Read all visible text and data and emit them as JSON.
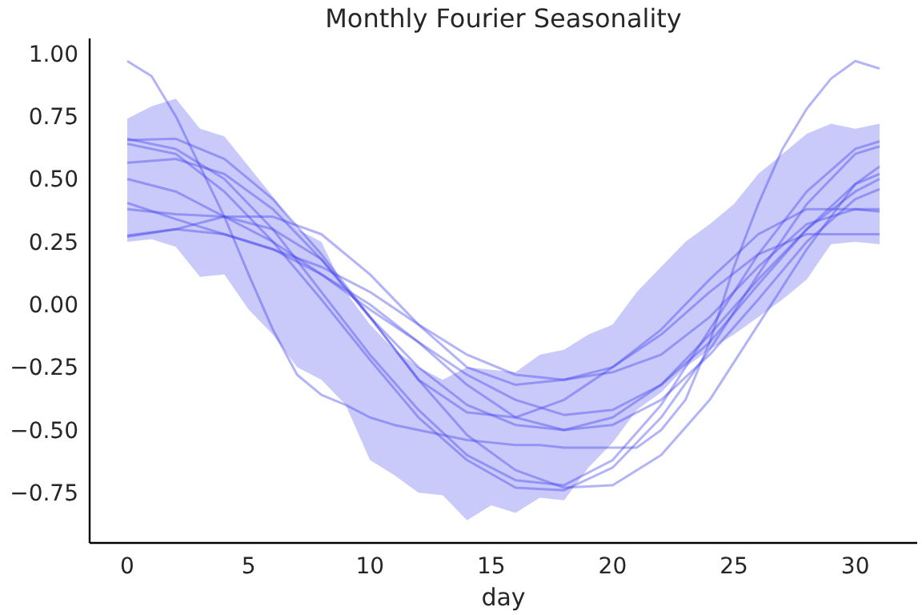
{
  "chart_data": {
    "type": "line",
    "title": "Monthly Fourier Seasonality",
    "xlabel": "day",
    "xlim": [
      -1.55,
      32.55
    ],
    "ylim": [
      -0.95,
      1.06
    ],
    "xticks": [
      0,
      5,
      10,
      15,
      20,
      25,
      30
    ],
    "yticks": [
      {
        "value": -0.75,
        "label": "−0.75"
      },
      {
        "value": -0.5,
        "label": "−0.50"
      },
      {
        "value": -0.25,
        "label": "−0.25"
      },
      {
        "value": 0,
        "label": "0.00"
      },
      {
        "value": 0.25,
        "label": "0.25"
      },
      {
        "value": 0.5,
        "label": "0.50"
      },
      {
        "value": 0.75,
        "label": "0.75"
      },
      {
        "value": 1,
        "label": "1.00"
      }
    ],
    "grid": false,
    "series": [
      {
        "color": "#4040ee",
        "x": [
          0,
          1,
          2,
          3,
          4,
          5,
          6,
          7,
          8,
          9,
          10,
          11,
          12,
          13,
          14,
          15,
          16,
          17,
          18,
          19,
          20,
          21,
          22,
          23,
          24,
          25,
          26,
          27,
          28,
          29,
          30,
          31
        ],
        "values": [
          0.97,
          0.91,
          0.75,
          0.55,
          0.35,
          0.12,
          -0.1,
          -0.28,
          -0.36,
          -0.4,
          -0.45,
          -0.48,
          -0.5,
          -0.52,
          -0.54,
          -0.55,
          -0.56,
          -0.56,
          -0.57,
          -0.57,
          -0.57,
          -0.57,
          -0.5,
          -0.38,
          -0.15,
          0.15,
          0.4,
          0.62,
          0.78,
          0.9,
          0.97,
          0.94
        ],
        "lower": [
          0.25,
          0.26,
          0.23,
          0.11,
          0.12,
          -0.02,
          -0.12,
          -0.25,
          -0.3,
          -0.4,
          -0.62,
          -0.68,
          -0.75,
          -0.76,
          -0.86,
          -0.8,
          -0.83,
          -0.77,
          -0.78,
          -0.65,
          -0.55,
          -0.42,
          -0.35,
          -0.25,
          -0.18,
          -0.12,
          -0.05,
          0.02,
          0.1,
          0.24,
          0.25,
          0.24
        ],
        "upper": [
          0.74,
          0.79,
          0.82,
          0.7,
          0.67,
          0.55,
          0.43,
          0.3,
          0.25,
          0.05,
          -0.08,
          -0.18,
          -0.25,
          -0.3,
          -0.25,
          -0.26,
          -0.27,
          -0.2,
          -0.18,
          -0.12,
          -0.08,
          0.05,
          0.15,
          0.25,
          0.32,
          0.4,
          0.52,
          0.6,
          0.68,
          0.72,
          0.7,
          0.72
        ]
      },
      {
        "color": "#4040ee",
        "x": [
          0,
          2,
          4,
          6,
          8,
          10,
          12,
          14,
          16,
          18,
          20,
          22,
          24,
          26,
          28,
          30,
          31
        ],
        "values": [
          0.66,
          0.62,
          0.5,
          0.3,
          0.05,
          -0.2,
          -0.42,
          -0.6,
          -0.7,
          -0.72,
          -0.62,
          -0.4,
          -0.1,
          0.2,
          0.45,
          0.62,
          0.65
        ]
      },
      {
        "color": "#4040ee",
        "x": [
          0,
          2,
          4,
          6,
          8,
          10,
          12,
          14,
          16,
          18,
          20,
          22,
          24,
          26,
          28,
          30,
          31
        ],
        "values": [
          0.655,
          0.66,
          0.58,
          0.42,
          0.2,
          -0.05,
          -0.3,
          -0.52,
          -0.66,
          -0.73,
          -0.72,
          -0.6,
          -0.38,
          -0.08,
          0.22,
          0.48,
          0.55
        ]
      },
      {
        "color": "#4040ee",
        "x": [
          0,
          2,
          4,
          6,
          8,
          10,
          12,
          14,
          16,
          18,
          20,
          22,
          24,
          26,
          28,
          30,
          31
        ],
        "values": [
          0.64,
          0.6,
          0.45,
          0.25,
          0.02,
          -0.22,
          -0.45,
          -0.62,
          -0.73,
          -0.74,
          -0.65,
          -0.45,
          -0.18,
          0.12,
          0.4,
          0.6,
          0.63
        ]
      },
      {
        "color": "#4040ee",
        "x": [
          0,
          2,
          4,
          6,
          8,
          10,
          12,
          14,
          16,
          18,
          20,
          22,
          24,
          26,
          28,
          30,
          31
        ],
        "values": [
          0.565,
          0.58,
          0.52,
          0.38,
          0.18,
          -0.05,
          -0.25,
          -0.4,
          -0.48,
          -0.5,
          -0.45,
          -0.32,
          -0.12,
          0.1,
          0.3,
          0.45,
          0.5
        ]
      },
      {
        "color": "#4040ee",
        "x": [
          0,
          2,
          4,
          6,
          8,
          10,
          12,
          14,
          16,
          18,
          20,
          22,
          24,
          26,
          28,
          30,
          31
        ],
        "values": [
          0.5,
          0.45,
          0.35,
          0.25,
          0.12,
          -0.02,
          -0.15,
          -0.28,
          -0.38,
          -0.44,
          -0.42,
          -0.32,
          -0.15,
          0.08,
          0.3,
          0.48,
          0.52
        ]
      },
      {
        "color": "#4040ee",
        "x": [
          0,
          2,
          4,
          6,
          8,
          10,
          12,
          14,
          16,
          18,
          20,
          22,
          24,
          26,
          28,
          30,
          31
        ],
        "values": [
          0.405,
          0.34,
          0.28,
          0.22,
          0.12,
          0,
          -0.15,
          -0.32,
          -0.45,
          -0.5,
          -0.48,
          -0.38,
          -0.2,
          0.02,
          0.25,
          0.42,
          0.46
        ]
      },
      {
        "color": "#4040ee",
        "x": [
          0,
          2,
          4,
          6,
          8,
          10,
          12,
          14,
          16,
          18,
          20,
          22,
          24,
          26,
          28,
          30,
          31
        ],
        "values": [
          0.38,
          0.36,
          0.35,
          0.3,
          0.18,
          -0.05,
          -0.3,
          -0.43,
          -0.45,
          -0.38,
          -0.25,
          -0.1,
          0.1,
          0.28,
          0.38,
          0.38,
          0.37
        ]
      },
      {
        "color": "#4040ee",
        "x": [
          0,
          2,
          4,
          6,
          8,
          10,
          12,
          14,
          16,
          18,
          20,
          22,
          24,
          26,
          28,
          30,
          31
        ],
        "values": [
          0.275,
          0.3,
          0.35,
          0.35,
          0.28,
          0.12,
          -0.08,
          -0.25,
          -0.32,
          -0.3,
          -0.27,
          -0.2,
          -0.05,
          0.15,
          0.32,
          0.38,
          0.38
        ]
      },
      {
        "color": "#4040ee",
        "x": [
          0,
          2,
          4,
          6,
          8,
          10,
          12,
          14,
          16,
          18,
          20,
          22,
          24,
          26,
          28,
          30,
          31
        ],
        "values": [
          0.27,
          0.3,
          0.28,
          0.22,
          0.15,
          0.05,
          -0.08,
          -0.2,
          -0.28,
          -0.3,
          -0.25,
          -0.12,
          0.05,
          0.2,
          0.28,
          0.28,
          0.28
        ]
      }
    ]
  }
}
